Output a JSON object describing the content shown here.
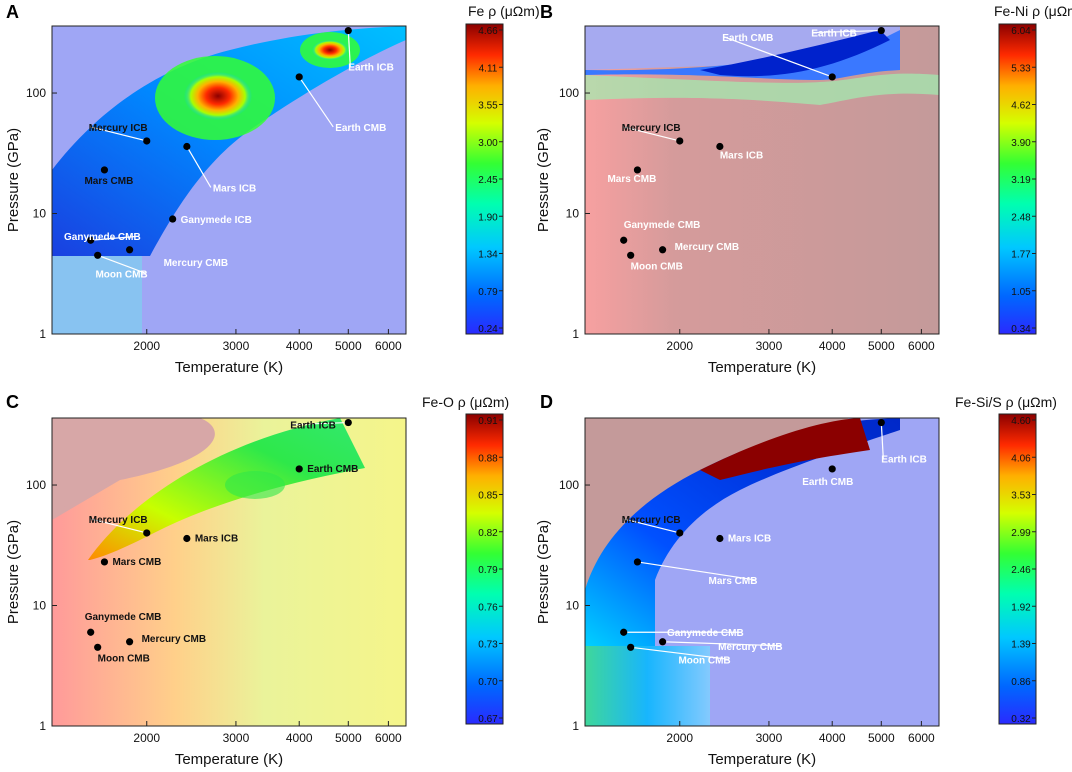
{
  "chart_data": [
    {
      "panel": "A",
      "type": "heatmap",
      "colorbar_title": "Fe ρ (μΩm)",
      "colorbar_ticks": [
        "4.66",
        "4.11",
        "3.55",
        "3.00",
        "2.45",
        "1.90",
        "1.34",
        "0.79",
        "0.24"
      ],
      "colorbar_range": [
        0.24,
        4.66
      ],
      "xlabel": "Temperature (K)",
      "ylabel": "Pressure (GPa)",
      "x_ticks": [
        "2000",
        "3000",
        "4000",
        "5000",
        "6000"
      ],
      "y_ticks": [
        "1",
        "10",
        "100"
      ],
      "xlim": [
        1300,
        6500
      ],
      "ylim": [
        1,
        360
      ],
      "points": [
        {
          "label": "Earth ICB",
          "T": 5000,
          "P": 330
        },
        {
          "label": "Earth CMB",
          "T": 4000,
          "P": 136
        },
        {
          "label": "Mercury ICB",
          "T": 2000,
          "P": 40
        },
        {
          "label": "Mars ICB",
          "T": 2400,
          "P": 36
        },
        {
          "label": "Mars CMB",
          "T": 1650,
          "P": 23
        },
        {
          "label": "Ganymede ICB",
          "T": 2250,
          "P": 9
        },
        {
          "label": "Ganymede CMB",
          "T": 1550,
          "P": 6
        },
        {
          "label": "Mercury CMB",
          "T": 1850,
          "P": 5
        },
        {
          "label": "Moon CMB",
          "T": 1600,
          "P": 4.5
        }
      ]
    },
    {
      "panel": "B",
      "type": "heatmap",
      "colorbar_title": "Fe-Ni ρ (μΩm)",
      "colorbar_ticks": [
        "6.04",
        "5.33",
        "4.62",
        "3.90",
        "3.19",
        "2.48",
        "1.77",
        "1.05",
        "0.34"
      ],
      "colorbar_range": [
        0.34,
        6.04
      ],
      "xlabel": "Temperature (K)",
      "ylabel": "Pressure (GPa)",
      "x_ticks": [
        "2000",
        "3000",
        "4000",
        "5000",
        "6000"
      ],
      "y_ticks": [
        "1",
        "10",
        "100"
      ],
      "xlim": [
        1300,
        6500
      ],
      "ylim": [
        1,
        360
      ],
      "points": [
        {
          "label": "Earth ICB",
          "T": 5000,
          "P": 330
        },
        {
          "label": "Earth CMB",
          "T": 4000,
          "P": 136
        },
        {
          "label": "Mercury ICB",
          "T": 2000,
          "P": 40
        },
        {
          "label": "Mars ICB",
          "T": 2400,
          "P": 36
        },
        {
          "label": "Mars CMB",
          "T": 1650,
          "P": 23
        },
        {
          "label": "Ganymede CMB",
          "T": 1550,
          "P": 6
        },
        {
          "label": "Mercury CMB",
          "T": 1850,
          "P": 5
        },
        {
          "label": "Moon CMB",
          "T": 1600,
          "P": 4.5
        }
      ]
    },
    {
      "panel": "C",
      "type": "heatmap",
      "colorbar_title": "Fe-O ρ (μΩm)",
      "colorbar_ticks": [
        "0.91",
        "0.88",
        "0.85",
        "0.82",
        "0.79",
        "0.76",
        "0.73",
        "0.70",
        "0.67"
      ],
      "colorbar_range": [
        0.67,
        0.91
      ],
      "xlabel": "Temperature (K)",
      "ylabel": "Pressure (GPa)",
      "x_ticks": [
        "2000",
        "3000",
        "4000",
        "5000",
        "6000"
      ],
      "y_ticks": [
        "1",
        "10",
        "100"
      ],
      "xlim": [
        1300,
        6500
      ],
      "ylim": [
        1,
        360
      ],
      "points": [
        {
          "label": "Earth ICB",
          "T": 5000,
          "P": 330
        },
        {
          "label": "Earth CMB",
          "T": 4000,
          "P": 136
        },
        {
          "label": "Mercury ICB",
          "T": 2000,
          "P": 40
        },
        {
          "label": "Mars ICB",
          "T": 2400,
          "P": 36
        },
        {
          "label": "Mars CMB",
          "T": 1650,
          "P": 23
        },
        {
          "label": "Ganymede CMB",
          "T": 1550,
          "P": 6
        },
        {
          "label": "Mercury CMB",
          "T": 1850,
          "P": 5
        },
        {
          "label": "Moon CMB",
          "T": 1600,
          "P": 4.5
        }
      ]
    },
    {
      "panel": "D",
      "type": "heatmap",
      "colorbar_title": "Fe-Si/S ρ (μΩm)",
      "colorbar_ticks": [
        "4.60",
        "4.06",
        "3.53",
        "2.99",
        "2.46",
        "1.92",
        "1.39",
        "0.86",
        "0.32"
      ],
      "colorbar_range": [
        0.32,
        4.6
      ],
      "xlabel": "Temperature (K)",
      "ylabel": "Pressure (GPa)",
      "x_ticks": [
        "2000",
        "3000",
        "4000",
        "5000",
        "6000"
      ],
      "y_ticks": [
        "1",
        "10",
        "100"
      ],
      "xlim": [
        1300,
        6500
      ],
      "ylim": [
        1,
        360
      ],
      "points": [
        {
          "label": "Earth ICB",
          "T": 5000,
          "P": 330
        },
        {
          "label": "Earth CMB",
          "T": 4000,
          "P": 136
        },
        {
          "label": "Mercury ICB",
          "T": 2000,
          "P": 40
        },
        {
          "label": "Mars ICB",
          "T": 2400,
          "P": 36
        },
        {
          "label": "Mars CMB",
          "T": 1650,
          "P": 23
        },
        {
          "label": "Ganymede CMB",
          "T": 1550,
          "P": 6
        },
        {
          "label": "Mercury CMB",
          "T": 1850,
          "P": 5
        },
        {
          "label": "Moon CMB",
          "T": 1600,
          "P": 4.5
        }
      ]
    }
  ]
}
